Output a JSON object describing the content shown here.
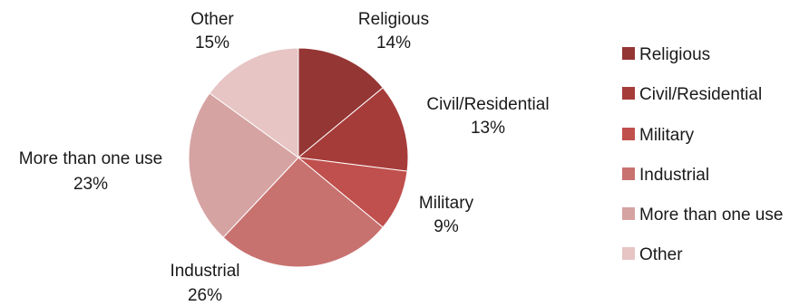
{
  "chart_data": {
    "type": "pie",
    "categories": [
      "Religious",
      "Civil/Residential",
      "Military",
      "Industrial",
      "More than one use",
      "Other"
    ],
    "values": [
      14,
      13,
      9,
      26,
      23,
      15
    ],
    "data_labels": [
      "14%",
      "13%",
      "9%",
      "26%",
      "23%",
      "15%"
    ],
    "colors": [
      "#943634",
      "#a63c3a",
      "#c0504d",
      "#c87270",
      "#d5a3a2",
      "#e6c5c4"
    ],
    "legend_position": "right",
    "start_angle": "12 o'clock",
    "direction": "clockwise"
  }
}
